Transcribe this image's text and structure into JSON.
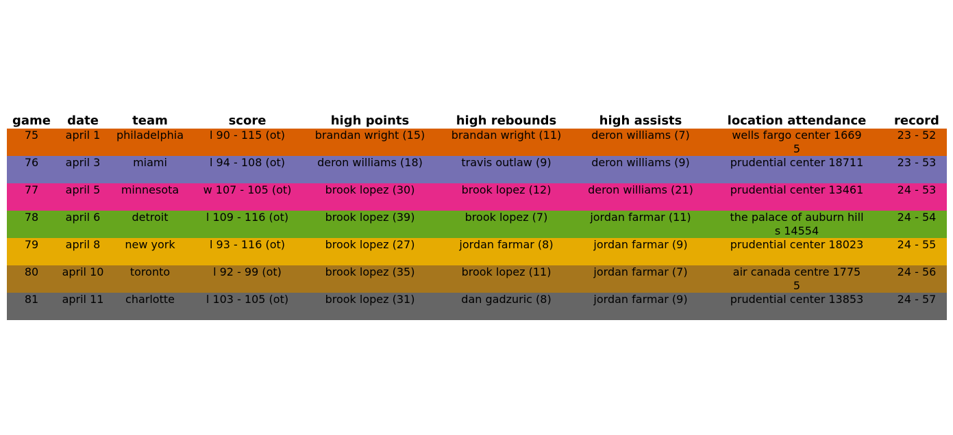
{
  "chart_data": {
    "type": "table",
    "columns": [
      "game",
      "date",
      "team",
      "score",
      "high points",
      "high rebounds",
      "high assists",
      "location attendance",
      "record"
    ],
    "rows": [
      [
        "75",
        "april 1",
        "philadelphia",
        "l 90 - 115 (ot)",
        "brandan wright (15)",
        "brandan wright (11)",
        "deron williams (7)",
        "wells fargo center 16695",
        "23 - 52"
      ],
      [
        "76",
        "april 3",
        "miami",
        "l 94 - 108 (ot)",
        "deron williams (18)",
        "travis outlaw (9)",
        "deron williams (9)",
        "prudential center 18711",
        "23 - 53"
      ],
      [
        "77",
        "april 5",
        "minnesota",
        "w 107 - 105 (ot)",
        "brook lopez (30)",
        "brook lopez (12)",
        "deron williams (21)",
        "prudential center 13461",
        "24 - 53"
      ],
      [
        "78",
        "april 6",
        "detroit",
        "l 109 - 116 (ot)",
        "brook lopez (39)",
        "brook lopez (7)",
        "jordan farmar (11)",
        "the palace of auburn hills 14554",
        "24 - 54"
      ],
      [
        "79",
        "april 8",
        "new york",
        "l 93 - 116 (ot)",
        "brook lopez (27)",
        "jordan farmar (8)",
        "jordan farmar (9)",
        "prudential center 18023",
        "24 - 55"
      ],
      [
        "80",
        "april 10",
        "toronto",
        "l 92 - 99 (ot)",
        "brook lopez (35)",
        "brook lopez (11)",
        "jordan farmar (7)",
        "air canada centre 17755",
        "24 - 56"
      ],
      [
        "81",
        "april 11",
        "charlotte",
        "l 103 - 105 (ot)",
        "brook lopez (31)",
        "dan gadzuric (8)",
        "jordan farmar (9)",
        "prudential center 13853",
        "24 - 57"
      ]
    ],
    "row_colors": [
      "#d95f02",
      "#7570b3",
      "#e7298a",
      "#66a61e",
      "#e6ab02",
      "#a6761d",
      "#666666"
    ]
  }
}
